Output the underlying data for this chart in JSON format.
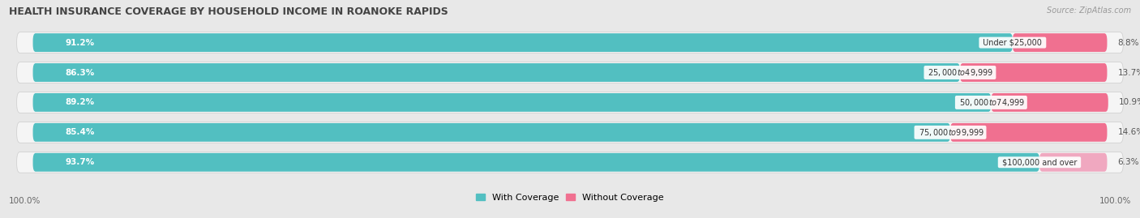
{
  "title": "HEALTH INSURANCE COVERAGE BY HOUSEHOLD INCOME IN ROANOKE RAPIDS",
  "source": "Source: ZipAtlas.com",
  "categories": [
    "Under $25,000",
    "$25,000 to $49,999",
    "$50,000 to $74,999",
    "$75,000 to $99,999",
    "$100,000 and over"
  ],
  "with_coverage": [
    91.2,
    86.3,
    89.2,
    85.4,
    93.7
  ],
  "without_coverage": [
    8.8,
    13.7,
    10.9,
    14.6,
    6.3
  ],
  "color_with": "#52bfc1",
  "color_without": "#f07090",
  "color_without_last": "#f0a8c0",
  "bar_height": 0.62,
  "background_color": "#e8e8e8",
  "bar_background": "#f5f5f5",
  "legend_with": "With Coverage",
  "legend_without": "Without Coverage",
  "xlim_left_label": "100.0%",
  "xlim_right_label": "100.0%",
  "total_width": 100
}
